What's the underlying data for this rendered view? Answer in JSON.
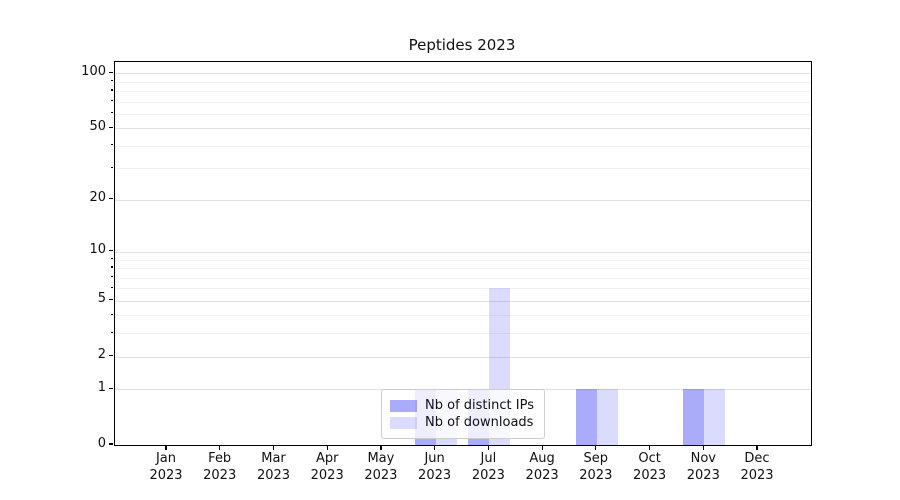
{
  "title": "Peptides 2023",
  "legend": {
    "items": [
      {
        "label": "Nb of distinct IPs",
        "color": "rgba(10,10,245,0.34)"
      },
      {
        "label": "Nb of downloads",
        "color": "rgba(10,10,245,0.145)"
      }
    ],
    "position": "lower center"
  },
  "colors": {
    "distinct_ips_bar": "rgba(10,10,245,0.34)",
    "downloads_bar": "rgba(10,10,245,0.145)",
    "grid_major": "#e2e2e2",
    "grid_minor": "#f1f1f1",
    "axis": "#000000"
  },
  "chart_data": {
    "type": "bar",
    "title": "Peptides 2023",
    "xlabel": "",
    "ylabel": "",
    "scale": "log1p",
    "categories": [
      "Jan 2023",
      "Feb 2023",
      "Mar 2023",
      "Apr 2023",
      "May 2023",
      "Jun 2023",
      "Jul 2023",
      "Aug 2023",
      "Sep 2023",
      "Oct 2023",
      "Nov 2023",
      "Dec 2023"
    ],
    "series": [
      {
        "name": "Nb of distinct IPs",
        "values": [
          0,
          0,
          0,
          0,
          0,
          1,
          1,
          0,
          1,
          0,
          1,
          0
        ],
        "color": "rgba(10,10,245,0.34)"
      },
      {
        "name": "Nb of downloads",
        "values": [
          0,
          0,
          0,
          0,
          0,
          1,
          6,
          0,
          1,
          0,
          1,
          0
        ],
        "color": "rgba(10,10,245,0.145)"
      }
    ],
    "y_major_ticks": [
      0,
      1,
      2,
      5,
      10,
      20,
      50,
      100
    ],
    "y_minor_ticks": [
      3,
      4,
      6,
      7,
      8,
      9,
      30,
      40,
      60,
      70,
      80,
      90
    ],
    "ylim": [
      0,
      115
    ],
    "grid": "horizontal",
    "legend_position": "lower center"
  }
}
